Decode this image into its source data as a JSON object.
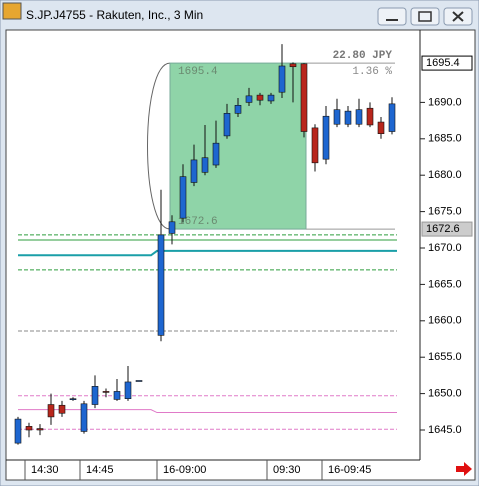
{
  "window": {
    "title": "S.JP.J4755 - Rakuten, Inc., 3 Min"
  },
  "chart_data": {
    "type": "candlestick",
    "categories": [
      null,
      "14:30",
      null,
      null,
      null,
      null,
      "14:45",
      null,
      null,
      null,
      null,
      null,
      null,
      "16-09:00",
      null,
      null,
      null,
      null,
      null,
      null,
      null,
      null,
      null,
      "09:30",
      null,
      null,
      null,
      null,
      "16-09:45",
      null,
      null,
      null,
      null,
      null,
      null
    ],
    "open": [
      1643.2,
      1645.5,
      1645.2,
      1648.5,
      1648.4,
      1649.3,
      1644.8,
      1648.5,
      1650.3,
      1649.2,
      1649.3,
      1651.8,
      null,
      1658.0,
      1672.0,
      1674.1,
      1679.0,
      1680.4,
      1681.4,
      1685.4,
      1688.5,
      1690.0,
      1691.0,
      1690.2,
      1691.4,
      1695.3,
      1695.3,
      1686.5,
      1682.2,
      1687.0,
      1687.0,
      1687.0,
      1689.2,
      1687.3,
      1686.0
    ],
    "high": [
      1646.8,
      1646.0,
      1645.8,
      1650.0,
      1649.0,
      1649.5,
      1649.0,
      1652.5,
      1650.7,
      1652.0,
      1653.8,
      1651.8,
      null,
      1678.0,
      1674.5,
      1681.5,
      1684.2,
      1686.9,
      1687.5,
      1689.8,
      1690.6,
      1692.0,
      1691.3,
      1691.3,
      1698.0,
      1695.5,
      1695.4,
      1687.0,
      1689.5,
      1690.5,
      1689.5,
      1690.5,
      1690.0,
      1688.0,
      1690.7
    ],
    "low": [
      1643.0,
      1644.0,
      1644.3,
      1645.7,
      1646.8,
      1649.0,
      1644.5,
      1648.0,
      1649.5,
      1649.0,
      1649.0,
      1651.8,
      null,
      1657.2,
      1670.5,
      1673.5,
      1678.5,
      1680.0,
      1681.0,
      1685.0,
      1688.0,
      1689.5,
      1689.6,
      1689.8,
      1690.6,
      1690.0,
      1685.2,
      1680.5,
      1681.5,
      1686.6,
      1686.6,
      1686.6,
      1686.6,
      1685.0,
      1685.6
    ],
    "close": [
      1646.5,
      1645.0,
      1645.0,
      1646.8,
      1647.3,
      1649.3,
      1648.6,
      1651.0,
      1650.2,
      1650.3,
      1651.6,
      1651.8,
      null,
      1671.8,
      1673.6,
      1679.8,
      1682.1,
      1682.4,
      1684.4,
      1688.5,
      1689.6,
      1690.9,
      1690.3,
      1691.0,
      1695.0,
      1694.9,
      1686.0,
      1681.7,
      1688.1,
      1689.0,
      1688.8,
      1689.0,
      1686.9,
      1685.7,
      1689.8
    ],
    "up_color": "#1e66d0",
    "down_color": "#b8261c",
    "ylim": [
      1640.88,
      1699.67
    ],
    "yticks": [
      {
        "value": 1645,
        "label": "1645.0"
      },
      {
        "value": 1650,
        "label": "1650.0"
      },
      {
        "value": 1655,
        "label": "1655.0"
      },
      {
        "value": 1660,
        "label": "1660.0"
      },
      {
        "value": 1665,
        "label": "1665.0"
      },
      {
        "value": 1670,
        "label": "1670.0"
      },
      {
        "value": 1675,
        "label": "1675.0"
      },
      {
        "value": 1680,
        "label": "1680.0"
      },
      {
        "value": 1685,
        "label": "1685.0"
      },
      {
        "value": 1690,
        "label": "1690.0"
      }
    ],
    "levels": [
      {
        "color": "#2e9e3e",
        "dash": true,
        "values": [
          1671.8,
          1671.8
        ]
      },
      {
        "color": "#2e9e3e",
        "dash": false,
        "values": [
          1671.1,
          1671.1
        ]
      },
      {
        "color": "#1a9fa8",
        "dash": false,
        "width": 2,
        "values": [
          1669.0,
          1669.6
        ]
      },
      {
        "color": "#2e9e3e",
        "dash": true,
        "values": [
          1667.0,
          1667.0
        ]
      },
      {
        "color": "#888888",
        "dash": true,
        "values": [
          1658.6,
          1658.6
        ]
      },
      {
        "color": "#e07ac8",
        "dash": true,
        "values": [
          1649.7,
          1649.7
        ]
      },
      {
        "color": "#e07ac8",
        "dash": false,
        "values": [
          1647.8,
          1647.4
        ]
      },
      {
        "color": "#e07ac8",
        "dash": true,
        "values": [
          1645.1,
          1645.1
        ]
      }
    ],
    "measurement": {
      "top": 1695.4,
      "bottom": 1672.6,
      "change": "22.80 JPY",
      "percent": "1.36 %",
      "color": "#8fd4a8"
    }
  }
}
